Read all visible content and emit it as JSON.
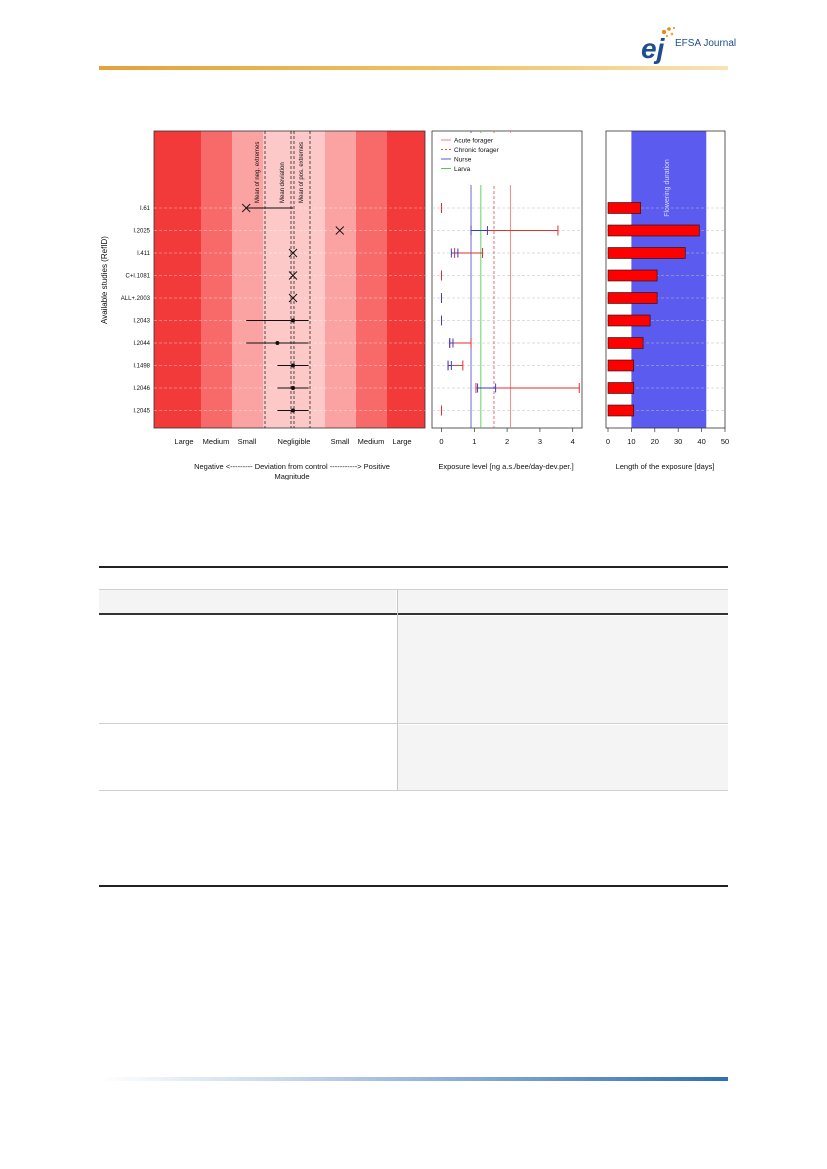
{
  "header": {
    "journal_name": "EFSA Journal"
  },
  "chart_data": [
    {
      "type": "forest",
      "panel": "deviation",
      "ylabel": "Available studies (RefID)",
      "xlabel": "Negative  <---------  Deviation from control  ----------->  Positive",
      "xlabel2": "Magnitude",
      "magnitude_labels": [
        "Large",
        "Medium",
        "Small",
        "Negligible",
        "Small",
        "Medium",
        "Large"
      ],
      "reference_lines": [
        "Mean of neg. extremes",
        "Mean deviation",
        "Mean of pos. extremes"
      ],
      "studies": [
        "I.61",
        "I.2025",
        "I.411",
        "C+I.1081",
        "ALL+.2003",
        "I.2043",
        "I.2044",
        "I.1498",
        "I.2046",
        "I.2045"
      ],
      "markers": [
        "x",
        "x",
        "x",
        "x",
        "x",
        "point",
        "point",
        "point",
        "point",
        "point"
      ],
      "center": [
        -0.9,
        0.9,
        0.0,
        0.0,
        0.0,
        0.0,
        -0.3,
        0.0,
        0.0,
        0.0
      ],
      "lower": [
        -0.9,
        0.9,
        0.0,
        0.0,
        0.0,
        -0.9,
        -0.9,
        -0.3,
        -0.3,
        -0.3
      ],
      "upper": [
        0.0,
        0.9,
        0.0,
        0.0,
        0.0,
        0.3,
        0.3,
        0.3,
        0.3,
        0.3
      ],
      "colors": {
        "large": "#f23a3a",
        "medium": "#f86a6a",
        "small": "#fba3a3",
        "negligible": "#fcc8c8"
      }
    },
    {
      "type": "interval",
      "panel": "exposure",
      "xlabel": "Exposure level [ng a.s./bee/day-dev.per.]",
      "x_ticks": [
        "0",
        "1",
        "2",
        "3",
        "4"
      ],
      "xlim": [
        -0.2,
        4.5
      ],
      "legend": [
        {
          "name": "Acute forager",
          "style": "solid",
          "color": "#f26d6d"
        },
        {
          "name": "Chronic forager",
          "style": "dashed",
          "color": "#e05050"
        },
        {
          "name": "Nurse",
          "style": "solid",
          "color": "#4646d0"
        },
        {
          "name": "Larva",
          "style": "solid",
          "color": "#3cc83c"
        }
      ],
      "legend_placement": "top-left",
      "reference_x": {
        "acute_forager": 2.1,
        "chronic_forager": 1.6,
        "nurse": 0.9,
        "larva": 1.2
      },
      "red_ranges": [
        [
          0.0,
          0.0
        ],
        [
          0.9,
          3.55
        ],
        [
          0.4,
          1.25
        ],
        [
          0.0,
          0.0
        ],
        [
          0.0,
          0.0
        ],
        [
          0.0,
          0.0
        ],
        [
          0.25,
          0.9
        ],
        [
          0.2,
          0.65
        ],
        [
          1.05,
          4.2
        ],
        [
          0.0,
          0.0
        ]
      ],
      "blue_ranges": [
        null,
        [
          0.9,
          1.4
        ],
        [
          0.3,
          0.5
        ],
        null,
        [
          0.0,
          0.0
        ],
        [
          0.0,
          0.0
        ],
        [
          0.25,
          0.35
        ],
        [
          0.2,
          0.3
        ],
        [
          1.1,
          1.65
        ],
        null
      ]
    },
    {
      "type": "bar",
      "panel": "duration",
      "xlabel": "Length of the exposure [days]",
      "x_ticks": [
        "0",
        "10",
        "20",
        "30",
        "40",
        "50"
      ],
      "xlim": [
        0,
        50
      ],
      "values": [
        14,
        39,
        33,
        21,
        21,
        18,
        15,
        11,
        11,
        11
      ],
      "shade_range": [
        10,
        42
      ],
      "shade_label": "Flowering duration",
      "colors": {
        "bar": "#ff0000",
        "shade": "#5b5bf0"
      }
    }
  ]
}
